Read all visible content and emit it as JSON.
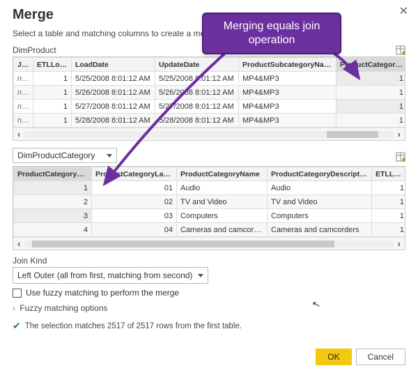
{
  "dialog": {
    "title": "Merge",
    "subtitle": "Select a table and matching columns to create a mer"
  },
  "callout": {
    "text": "Merging equals join operation"
  },
  "table1": {
    "label": "DimProduct",
    "columns": [
      "JRL",
      "ETLLoadID",
      "LoadDate",
      "UpdateDate",
      "ProductSubcategoryName",
      "ProductCategoryKey"
    ],
    "rows": [
      [
        "null",
        "1",
        "5/25/2008 8:01:12 AM",
        "5/25/2008 8:01:12 AM",
        "MP4&MP3",
        "1"
      ],
      [
        "null",
        "1",
        "5/26/2008 8:01:12 AM",
        "5/26/2008 8:01:12 AM",
        "MP4&MP3",
        "1"
      ],
      [
        "null",
        "1",
        "5/27/2008 8:01:12 AM",
        "5/27/2008 8:01:12 AM",
        "MP4&MP3",
        "1"
      ],
      [
        "null",
        "1",
        "5/28/2008 8:01:12 AM",
        "5/28/2008 8:01:12 AM",
        "MP4&MP3",
        "1"
      ]
    ],
    "selected_col_index": 5,
    "col_widths": [
      "28px",
      "55px",
      "120px",
      "120px",
      "140px",
      "102px"
    ],
    "thumb_left": "82%",
    "thumb_width": "14%"
  },
  "dropdown2": {
    "selected": "DimProductCategory"
  },
  "table2": {
    "columns": [
      "ProductCategoryKey",
      "ProductCategoryLabel",
      "ProductCategoryName",
      "ProductCategoryDescription",
      "ETLLoadID"
    ],
    "rows": [
      [
        "1",
        "01",
        "Audio",
        "Audio",
        "1"
      ],
      [
        "2",
        "02",
        "TV and Video",
        "TV and Video",
        "1"
      ],
      [
        "3",
        "03",
        "Computers",
        "Computers",
        "1"
      ],
      [
        "4",
        "04",
        "Cameras and camcorders",
        "Cameras and camcorders",
        "1"
      ]
    ],
    "selected_col_index": 0,
    "col_widths": [
      "112px",
      "122px",
      "130px",
      "150px",
      "52px"
    ],
    "thumb_left": "2%",
    "thumb_width": "82%"
  },
  "joinKind": {
    "label": "Join Kind",
    "selected": "Left Outer (all from first, matching from second)"
  },
  "fuzzy": {
    "checkbox_label": "Use fuzzy matching to perform the merge",
    "expander_label": "Fuzzy matching options"
  },
  "status": {
    "text": "The selection matches 2517 of 2517 rows from the first table."
  },
  "buttons": {
    "ok": "OK",
    "cancel": "Cancel"
  }
}
